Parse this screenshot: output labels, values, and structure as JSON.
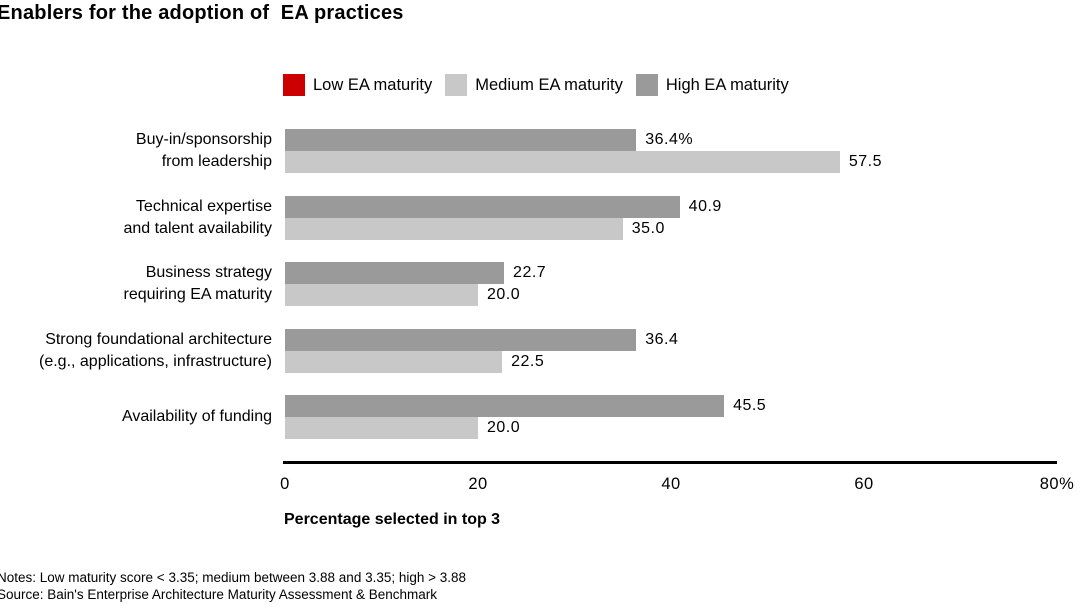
{
  "title": "Enablers for the adoption of  EA practices",
  "chart_data": {
    "type": "bar",
    "orientation": "horizontal",
    "title": "Enablers for the adoption of  EA practices",
    "categories": [
      "Buy-in/sponsorship from leadership",
      "Technical expertise and talent availability",
      "Business strategy requiring EA maturity",
      "Strong foundational architecture (e.g., applications, infrastructure)",
      "Availability of funding"
    ],
    "category_lines": [
      [
        "Buy-in/sponsorship",
        "from leadership"
      ],
      [
        "Technical expertise",
        "and talent availability"
      ],
      [
        "Business strategy",
        "requiring EA maturity"
      ],
      [
        "Strong foundational architecture",
        "(e.g., applications, infrastructure)"
      ],
      [
        "Availability of funding"
      ]
    ],
    "series": [
      {
        "name": "High EA maturity",
        "color": "#9a9a9a",
        "values": [
          36.4,
          40.9,
          22.7,
          36.4,
          45.5
        ],
        "labels": [
          "36.4%",
          "40.9",
          "22.7",
          "36.4",
          "45.5"
        ]
      },
      {
        "name": "Medium EA maturity",
        "color": "#c8c8c8",
        "values": [
          57.5,
          35.0,
          20.0,
          22.5,
          20.0
        ],
        "labels": [
          "57.5",
          "35.0",
          "20.0",
          "22.5",
          "20.0"
        ]
      }
    ],
    "legend": [
      {
        "label": "Low EA maturity",
        "color": "#cc0000"
      },
      {
        "label": "Medium EA maturity",
        "color": "#c8c8c8"
      },
      {
        "label": "High EA maturity",
        "color": "#9a9a9a"
      }
    ],
    "xlim": [
      0,
      80
    ],
    "xticks": [
      "0",
      "20",
      "40",
      "60",
      "80%"
    ],
    "xlabel": "Percentage selected in top 3",
    "grid": false,
    "legend_position": "top"
  },
  "footer": {
    "notes": "Notes: Low maturity score < 3.35; medium between 3.88 and 3.35; high > 3.88",
    "source": "Source: Bain's Enterprise Architecture Maturity Assessment & Benchmark"
  }
}
